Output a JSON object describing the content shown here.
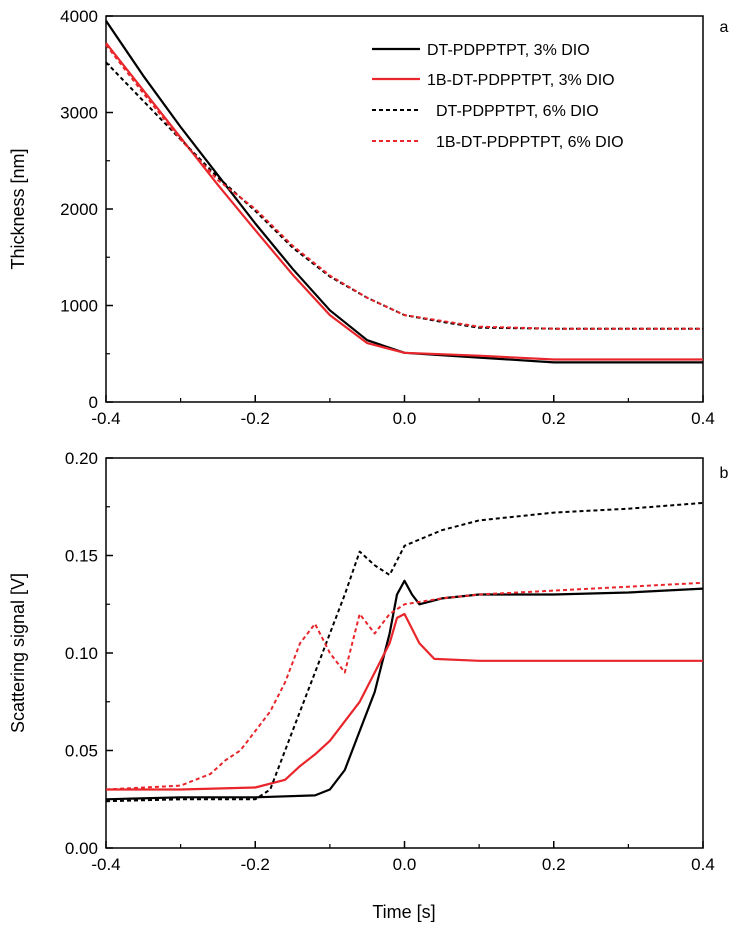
{
  "colors": {
    "black": "#000000",
    "red": "#e8262b"
  },
  "x_ticks": [
    "-0.4",
    "-0.2",
    "0.0",
    "0.2",
    "0.4"
  ],
  "chart_data": [
    {
      "panel": "a",
      "type": "line",
      "xlabel": "",
      "ylabel": "Thickness [nm]",
      "xlim": [
        -0.4,
        0.4
      ],
      "ylim": [
        0,
        4000
      ],
      "y_ticks": [
        "0",
        "1000",
        "2000",
        "3000",
        "4000"
      ],
      "legend_position": "top-right",
      "series": [
        {
          "name": "DT-PDPPTPT, 3% DIO",
          "color": "#000000",
          "dash": "solid",
          "x": [
            -0.4,
            -0.35,
            -0.3,
            -0.25,
            -0.2,
            -0.15,
            -0.1,
            -0.05,
            0.0,
            0.1,
            0.2,
            0.3,
            0.4
          ],
          "y": [
            3950,
            3380,
            2850,
            2350,
            1850,
            1380,
            950,
            640,
            510,
            460,
            410,
            410,
            410
          ]
        },
        {
          "name": "1B-DT-PDPPTPT, 3% DIO",
          "color": "#e8262b",
          "dash": "solid",
          "x": [
            -0.4,
            -0.35,
            -0.3,
            -0.25,
            -0.2,
            -0.15,
            -0.1,
            -0.05,
            0.0,
            0.1,
            0.2,
            0.3,
            0.4
          ],
          "y": [
            3720,
            3230,
            2740,
            2250,
            1780,
            1320,
            900,
            610,
            510,
            480,
            440,
            440,
            440
          ]
        },
        {
          "name": "DT-PDPPTPT, 6% DIO",
          "color": "#000000",
          "dash": "dotted",
          "x": [
            -0.4,
            -0.35,
            -0.3,
            -0.25,
            -0.2,
            -0.15,
            -0.1,
            -0.05,
            0.0,
            0.05,
            0.1,
            0.2,
            0.3,
            0.4
          ],
          "y": [
            3520,
            3120,
            2720,
            2330,
            1980,
            1600,
            1300,
            1080,
            900,
            830,
            770,
            760,
            760,
            760
          ]
        },
        {
          "name": "1B-DT-PDPPTPT, 6% DIO",
          "color": "#e8262b",
          "dash": "dotted",
          "x": [
            -0.4,
            -0.35,
            -0.3,
            -0.25,
            -0.2,
            -0.15,
            -0.1,
            -0.05,
            0.0,
            0.05,
            0.1,
            0.2,
            0.3,
            0.4
          ],
          "y": [
            3700,
            3200,
            2720,
            2300,
            2000,
            1620,
            1310,
            1080,
            900,
            840,
            780,
            760,
            760,
            760
          ]
        }
      ]
    },
    {
      "panel": "b",
      "type": "line",
      "xlabel": "Time [s]",
      "ylabel": "Scattering signal [V]",
      "xlim": [
        -0.4,
        0.4
      ],
      "ylim": [
        0,
        0.2
      ],
      "y_ticks": [
        "0.00",
        "0.05",
        "0.10",
        "0.15",
        "0.20"
      ],
      "series": [
        {
          "name": "DT-PDPPTPT, 3% DIO",
          "color": "#000000",
          "dash": "solid",
          "x": [
            -0.4,
            -0.3,
            -0.2,
            -0.12,
            -0.1,
            -0.08,
            -0.06,
            -0.04,
            -0.03,
            -0.02,
            -0.01,
            0.0,
            0.01,
            0.02,
            0.05,
            0.1,
            0.2,
            0.3,
            0.4
          ],
          "y": [
            0.025,
            0.026,
            0.026,
            0.027,
            0.03,
            0.04,
            0.06,
            0.08,
            0.095,
            0.11,
            0.13,
            0.137,
            0.13,
            0.125,
            0.128,
            0.13,
            0.13,
            0.131,
            0.133
          ]
        },
        {
          "name": "1B-DT-PDPPTPT, 3% DIO",
          "color": "#e8262b",
          "dash": "solid",
          "x": [
            -0.4,
            -0.3,
            -0.2,
            -0.16,
            -0.14,
            -0.12,
            -0.1,
            -0.08,
            -0.06,
            -0.04,
            -0.02,
            -0.01,
            0.0,
            0.02,
            0.04,
            0.1,
            0.2,
            0.3,
            0.4
          ],
          "y": [
            0.03,
            0.03,
            0.031,
            0.035,
            0.042,
            0.048,
            0.055,
            0.065,
            0.075,
            0.09,
            0.105,
            0.118,
            0.12,
            0.105,
            0.097,
            0.096,
            0.096,
            0.096,
            0.096
          ]
        },
        {
          "name": "DT-PDPPTPT, 6% DIO",
          "color": "#000000",
          "dash": "dotted",
          "x": [
            -0.4,
            -0.3,
            -0.2,
            -0.18,
            -0.16,
            -0.14,
            -0.12,
            -0.1,
            -0.08,
            -0.06,
            -0.04,
            -0.02,
            0.0,
            0.05,
            0.1,
            0.2,
            0.3,
            0.4
          ],
          "y": [
            0.024,
            0.025,
            0.025,
            0.03,
            0.05,
            0.07,
            0.09,
            0.11,
            0.13,
            0.152,
            0.145,
            0.14,
            0.155,
            0.163,
            0.168,
            0.172,
            0.174,
            0.177
          ]
        },
        {
          "name": "1B-DT-PDPPTPT, 6% DIO",
          "color": "#e8262b",
          "dash": "dotted",
          "x": [
            -0.4,
            -0.3,
            -0.26,
            -0.24,
            -0.22,
            -0.2,
            -0.18,
            -0.16,
            -0.14,
            -0.12,
            -0.1,
            -0.08,
            -0.06,
            -0.04,
            -0.02,
            0.0,
            0.05,
            0.1,
            0.2,
            0.3,
            0.4
          ],
          "y": [
            0.03,
            0.032,
            0.038,
            0.045,
            0.05,
            0.06,
            0.07,
            0.085,
            0.105,
            0.115,
            0.1,
            0.09,
            0.12,
            0.11,
            0.12,
            0.125,
            0.128,
            0.13,
            0.132,
            0.134,
            0.136
          ]
        }
      ]
    }
  ]
}
